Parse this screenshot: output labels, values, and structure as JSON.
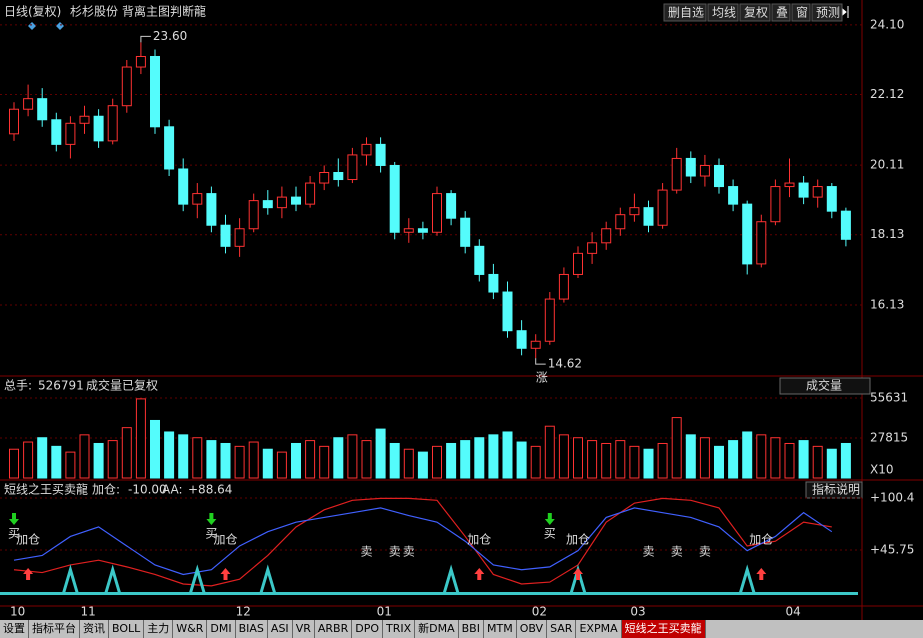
{
  "header": {
    "period": "日线(复权)",
    "stock": "杉杉股份",
    "indicator_name": "背离主图判断龍",
    "buttons": [
      "删自选",
      "均线",
      "复权",
      "叠",
      "窗",
      "预测"
    ]
  },
  "chart_data": [
    {
      "type": "candlestick",
      "up_color": "#ff3232",
      "down_color": "#54fcfc",
      "categories": [
        "10",
        null,
        null,
        null,
        null,
        "11",
        null,
        null,
        null,
        null,
        null,
        null,
        null,
        null,
        null,
        null,
        "12",
        null,
        null,
        null,
        null,
        null,
        null,
        null,
        null,
        null,
        "01",
        null,
        null,
        null,
        null,
        null,
        null,
        null,
        null,
        null,
        null,
        "02",
        null,
        null,
        null,
        null,
        null,
        null,
        "03",
        null,
        null,
        null,
        null,
        null,
        null,
        null,
        null,
        null,
        null,
        "04",
        null,
        null,
        null,
        null
      ],
      "ohlc": [
        [
          21.0,
          21.9,
          20.8,
          21.7
        ],
        [
          21.7,
          22.4,
          21.5,
          22.0
        ],
        [
          22.0,
          22.3,
          21.2,
          21.4
        ],
        [
          21.4,
          21.6,
          20.5,
          20.7
        ],
        [
          20.7,
          21.5,
          20.3,
          21.3
        ],
        [
          21.3,
          21.8,
          21.0,
          21.5
        ],
        [
          21.5,
          21.7,
          20.6,
          20.8
        ],
        [
          20.8,
          22.0,
          20.7,
          21.8
        ],
        [
          21.8,
          23.1,
          21.6,
          22.9
        ],
        [
          22.9,
          23.6,
          22.7,
          23.2
        ],
        [
          23.2,
          23.4,
          21.0,
          21.2
        ],
        [
          21.2,
          21.4,
          19.8,
          20.0
        ],
        [
          20.0,
          20.3,
          18.8,
          19.0
        ],
        [
          19.0,
          19.6,
          18.6,
          19.3
        ],
        [
          19.3,
          19.5,
          18.2,
          18.4
        ],
        [
          18.4,
          18.7,
          17.6,
          17.8
        ],
        [
          17.8,
          18.6,
          17.5,
          18.3
        ],
        [
          18.3,
          19.3,
          18.2,
          19.1
        ],
        [
          19.1,
          19.4,
          18.7,
          18.9
        ],
        [
          18.9,
          19.5,
          18.6,
          19.2
        ],
        [
          19.2,
          19.5,
          18.8,
          19.0
        ],
        [
          19.0,
          19.8,
          18.9,
          19.6
        ],
        [
          19.6,
          20.1,
          19.4,
          19.9
        ],
        [
          19.9,
          20.3,
          19.5,
          19.7
        ],
        [
          19.7,
          20.6,
          19.6,
          20.4
        ],
        [
          20.4,
          20.9,
          20.1,
          20.7
        ],
        [
          20.7,
          20.9,
          19.9,
          20.1
        ],
        [
          20.1,
          20.2,
          18.0,
          18.2
        ],
        [
          18.2,
          18.6,
          17.9,
          18.3
        ],
        [
          18.3,
          18.5,
          18.0,
          18.2
        ],
        [
          18.2,
          19.5,
          18.1,
          19.3
        ],
        [
          19.3,
          19.4,
          18.4,
          18.6
        ],
        [
          18.6,
          18.8,
          17.6,
          17.8
        ],
        [
          17.8,
          18.0,
          16.8,
          17.0
        ],
        [
          17.0,
          17.3,
          16.3,
          16.5
        ],
        [
          16.5,
          16.8,
          15.2,
          15.4
        ],
        [
          15.4,
          15.7,
          14.7,
          14.9
        ],
        [
          14.9,
          15.3,
          14.62,
          15.1
        ],
        [
          15.1,
          16.5,
          15.0,
          16.3
        ],
        [
          16.3,
          17.2,
          16.2,
          17.0
        ],
        [
          17.0,
          17.8,
          16.9,
          17.6
        ],
        [
          17.6,
          18.2,
          17.3,
          17.9
        ],
        [
          17.9,
          18.5,
          17.7,
          18.3
        ],
        [
          18.3,
          18.9,
          18.1,
          18.7
        ],
        [
          18.7,
          19.3,
          18.5,
          18.9
        ],
        [
          18.9,
          19.1,
          18.2,
          18.4
        ],
        [
          18.4,
          19.6,
          18.3,
          19.4
        ],
        [
          19.4,
          20.6,
          19.3,
          20.3
        ],
        [
          20.3,
          20.5,
          19.6,
          19.8
        ],
        [
          19.8,
          20.4,
          19.5,
          20.1
        ],
        [
          20.1,
          20.3,
          19.3,
          19.5
        ],
        [
          19.5,
          19.7,
          18.8,
          19.0
        ],
        [
          19.0,
          19.1,
          17.0,
          17.3
        ],
        [
          17.3,
          18.7,
          17.2,
          18.5
        ],
        [
          18.5,
          19.7,
          18.4,
          19.5
        ],
        [
          19.5,
          20.3,
          19.2,
          19.6
        ],
        [
          19.6,
          19.8,
          19.0,
          19.2
        ],
        [
          19.2,
          19.7,
          18.9,
          19.5
        ],
        [
          19.5,
          19.6,
          18.6,
          18.8
        ],
        [
          18.8,
          18.9,
          17.8,
          18.0
        ]
      ],
      "ylim": [
        14.14,
        24.38
      ],
      "yticks": [
        {
          "value": 16.13,
          "label": "16.13"
        },
        {
          "value": 18.13,
          "label": "18.13"
        },
        {
          "value": 20.11,
          "label": "20.11"
        },
        {
          "value": 22.12,
          "label": "22.12"
        },
        {
          "value": 24.1,
          "label": "24.10"
        }
      ],
      "annotations": [
        {
          "x": 9,
          "value": 23.6,
          "label": "23.60"
        },
        {
          "x": 37,
          "value": 14.62,
          "label": "14.62"
        }
      ],
      "tag": "涨"
    },
    {
      "type": "volume",
      "total_label": "总手:",
      "total": 526791,
      "subtitle": "成交量已复权",
      "selector": "成交量",
      "multiplier": "X10",
      "values": [
        20000,
        25000,
        28000,
        22000,
        18000,
        30000,
        24000,
        26000,
        35000,
        55000,
        40000,
        32000,
        30000,
        28000,
        26000,
        24000,
        22000,
        25000,
        20000,
        18000,
        24000,
        26000,
        22000,
        28000,
        30000,
        26000,
        34000,
        24000,
        20000,
        18000,
        22000,
        24000,
        26000,
        28000,
        30000,
        32000,
        25000,
        22000,
        36000,
        30000,
        28000,
        26000,
        24000,
        26000,
        22000,
        20000,
        24000,
        42000,
        30000,
        28000,
        22000,
        26000,
        32000,
        30000,
        28000,
        24000,
        26000,
        22000,
        20000,
        24000
      ],
      "ylim": [
        0,
        57700
      ],
      "yticks": [
        27815,
        55631
      ]
    },
    {
      "type": "line",
      "title": "短线之王买卖龍",
      "stats": [
        {
          "name": "加仓:",
          "value": -10,
          "label": "-10.00"
        },
        {
          "name": "AA:",
          "value": 88.64,
          "label": "+88.64"
        }
      ],
      "button": "指标说明",
      "x": [
        0,
        2,
        4,
        6,
        8,
        10,
        12,
        14,
        16,
        18,
        20,
        22,
        24,
        26,
        28,
        30,
        32,
        34,
        36,
        38,
        40,
        42,
        44,
        46,
        48,
        50,
        52,
        54,
        56,
        58
      ],
      "series": [
        {
          "color": "#e02020",
          "values": [
            25,
            22,
            30,
            35,
            28,
            20,
            10,
            8,
            15,
            40,
            70,
            88,
            98,
            100,
            100,
            98,
            60,
            20,
            10,
            12,
            30,
            75,
            95,
            100,
            98,
            90,
            50,
            55,
            75,
            70
          ]
        },
        {
          "color": "#4060ff",
          "values": [
            35,
            40,
            60,
            70,
            50,
            30,
            20,
            25,
            50,
            65,
            75,
            80,
            85,
            90,
            82,
            75,
            55,
            30,
            25,
            28,
            45,
            80,
            90,
            85,
            80,
            70,
            45,
            60,
            85,
            65
          ]
        }
      ],
      "signals": {
        "color": "#3cc8c8",
        "x": [
          4,
          7,
          13,
          18,
          31,
          40,
          52
        ],
        "values": [
          25,
          25,
          25,
          25,
          25,
          25,
          25
        ]
      },
      "markers": [
        {
          "x": 1,
          "label": "加仓"
        },
        {
          "x": 0,
          "label": "买"
        },
        {
          "x": 15,
          "label": "加仓"
        },
        {
          "x": 14,
          "label": "买"
        },
        {
          "x": 25,
          "label": "卖"
        },
        {
          "x": 27,
          "label": "卖"
        },
        {
          "x": 28,
          "label": "卖"
        },
        {
          "x": 33,
          "label": "加仓"
        },
        {
          "x": 38,
          "label": "买"
        },
        {
          "x": 40,
          "label": "加仓"
        },
        {
          "x": 45,
          "label": "卖"
        },
        {
          "x": 47,
          "label": "卖"
        },
        {
          "x": 49,
          "label": "卖"
        },
        {
          "x": 53,
          "label": "加仓"
        }
      ],
      "ylim": [
        -12.1,
        114.1
      ],
      "yticks": [
        {
          "value": 45.75,
          "label": "+45.75"
        },
        {
          "value": 100.4,
          "label": "+100.4"
        }
      ]
    }
  ],
  "tabs": [
    "设置",
    "指标平台",
    "资讯",
    "BOLL",
    "主力",
    "W&R",
    "DMI",
    "BIAS",
    "ASI",
    "VR",
    "ARBR",
    "DPO",
    "TRIX",
    "新DMA",
    "BBI",
    "MTM",
    "OBV",
    "SAR",
    "EXPMA",
    "短线之王买卖龍"
  ]
}
